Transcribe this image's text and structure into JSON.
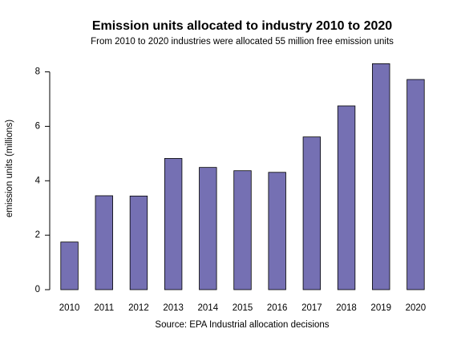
{
  "chart_data": {
    "type": "bar",
    "title": "Emission units allocated to industry 2010 to 2020",
    "subtitle": "From 2010 to 2020 industries were allocated 55 million free emission units",
    "xlabel": "",
    "ylabel": "emission units (millions)",
    "caption": "Source: EPA Industrial allocation decisions",
    "categories": [
      "2010",
      "2011",
      "2012",
      "2013",
      "2014",
      "2015",
      "2016",
      "2017",
      "2018",
      "2019",
      "2020"
    ],
    "values": [
      1.75,
      3.45,
      3.44,
      4.82,
      4.49,
      4.37,
      4.31,
      5.61,
      6.75,
      8.3,
      7.72
    ],
    "ylim": [
      0,
      8.4
    ],
    "yticks": [
      0,
      2,
      4,
      6,
      8
    ],
    "grid": false,
    "bar_color": "#7570b3",
    "bar_edge_color": "#000000"
  }
}
